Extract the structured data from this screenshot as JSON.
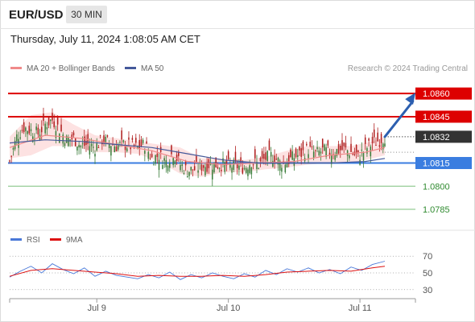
{
  "header": {
    "symbol": "EUR/USD",
    "timeframe": "30 MIN",
    "datetime": "Thursday, July 11, 2024 1:08:05 AM CET"
  },
  "legend": {
    "ma20_bb": "MA 20 + Bollinger Bands",
    "ma50": "MA 50",
    "copyright": "Research © 2024 Trading Central"
  },
  "rsi_legend": {
    "rsi": "RSI",
    "ma9": "9MA"
  },
  "colors": {
    "resistance": "#dd0000",
    "support": "#3a7de0",
    "target": "#2f8a2f",
    "arrow": "#2c5fb0",
    "bullish": "#3a7d3a",
    "bearish": "#b02020",
    "bollinger_fill": "#fde2e2",
    "ma20": "#f08a8a",
    "ma50": "#44599a",
    "rsi": "#4a78d8",
    "rsi_ma": "#dd1111",
    "current_price_tag": "#333333"
  },
  "chart_data": [
    {
      "type": "candlestick",
      "instrument": "EUR/USD",
      "timeframe": "30 MIN",
      "ylim": [
        1.0772,
        1.087
      ],
      "x_tick_labels": [
        "Jul 9",
        "Jul 10",
        "Jul 11"
      ],
      "levels": [
        {
          "value": 1.086,
          "label": "1.0860",
          "kind": "resistance"
        },
        {
          "value": 1.0845,
          "label": "1.0845",
          "kind": "resistance"
        },
        {
          "value": 1.0832,
          "label": "1.0832",
          "kind": "current"
        },
        {
          "value": 1.0815,
          "label": "1.0815",
          "kind": "pivot"
        },
        {
          "value": 1.08,
          "label": "1.0800",
          "kind": "target"
        },
        {
          "value": 1.0785,
          "label": "1.0785",
          "kind": "target"
        }
      ],
      "close_path": [
        [
          0,
          1.0816
        ],
        [
          4,
          1.0832
        ],
        [
          8,
          1.0838
        ],
        [
          12,
          1.0836
        ],
        [
          16,
          1.0834
        ],
        [
          20,
          1.084
        ],
        [
          24,
          1.0843
        ],
        [
          28,
          1.0837
        ],
        [
          32,
          1.083
        ],
        [
          36,
          1.0831
        ],
        [
          40,
          1.0826
        ],
        [
          44,
          1.0827
        ],
        [
          48,
          1.0825
        ],
        [
          52,
          1.083
        ],
        [
          56,
          1.0828
        ],
        [
          60,
          1.0826
        ],
        [
          64,
          1.0827
        ],
        [
          68,
          1.0826
        ],
        [
          72,
          1.0825
        ],
        [
          76,
          1.0827
        ],
        [
          80,
          1.0818
        ],
        [
          84,
          1.082
        ],
        [
          88,
          1.0816
        ],
        [
          92,
          1.0822
        ],
        [
          96,
          1.0814
        ],
        [
          100,
          1.081
        ],
        [
          104,
          1.0811
        ],
        [
          108,
          1.0813
        ],
        [
          112,
          1.0814
        ],
        [
          116,
          1.0814
        ],
        [
          120,
          1.0814
        ],
        [
          124,
          1.0813
        ],
        [
          128,
          1.0813
        ],
        [
          132,
          1.0812
        ],
        [
          136,
          1.0816
        ],
        [
          140,
          1.0814
        ],
        [
          144,
          1.0818
        ],
        [
          148,
          1.082
        ],
        [
          152,
          1.0815
        ],
        [
          156,
          1.0816
        ],
        [
          160,
          1.0819
        ],
        [
          164,
          1.0821
        ],
        [
          168,
          1.0824
        ],
        [
          172,
          1.0821
        ],
        [
          176,
          1.0823
        ],
        [
          180,
          1.0822
        ],
        [
          184,
          1.0823
        ],
        [
          188,
          1.0824
        ],
        [
          192,
          1.0822
        ],
        [
          196,
          1.0819
        ],
        [
          200,
          1.0824
        ],
        [
          204,
          1.0828
        ],
        [
          208,
          1.083
        ],
        [
          211,
          1.0832
        ]
      ],
      "ma20_path": [
        [
          0,
          1.0825
        ],
        [
          20,
          1.0833
        ],
        [
          40,
          1.0831
        ],
        [
          60,
          1.0827
        ],
        [
          80,
          1.0823
        ],
        [
          100,
          1.0816
        ],
        [
          120,
          1.0814
        ],
        [
          140,
          1.0815
        ],
        [
          160,
          1.0816
        ],
        [
          180,
          1.082
        ],
        [
          200,
          1.0822
        ],
        [
          211,
          1.0825
        ]
      ],
      "ma50_path": [
        [
          0,
          1.0828
        ],
        [
          20,
          1.083
        ],
        [
          40,
          1.0829
        ],
        [
          60,
          1.0827
        ],
        [
          80,
          1.0825
        ],
        [
          100,
          1.0821
        ],
        [
          120,
          1.0817
        ],
        [
          140,
          1.0815
        ],
        [
          160,
          1.0815
        ],
        [
          180,
          1.0815
        ],
        [
          200,
          1.0816
        ],
        [
          211,
          1.0818
        ]
      ],
      "bollinger_upper": [
        [
          0,
          1.0832
        ],
        [
          12,
          1.0846
        ],
        [
          24,
          1.0848
        ],
        [
          36,
          1.084
        ],
        [
          48,
          1.0833
        ],
        [
          60,
          1.0831
        ],
        [
          72,
          1.0829
        ],
        [
          84,
          1.0827
        ],
        [
          96,
          1.0825
        ],
        [
          108,
          1.0818
        ],
        [
          120,
          1.0818
        ],
        [
          132,
          1.0817
        ],
        [
          144,
          1.0819
        ],
        [
          156,
          1.0823
        ],
        [
          168,
          1.0826
        ],
        [
          180,
          1.0826
        ],
        [
          192,
          1.0826
        ],
        [
          204,
          1.0829
        ],
        [
          211,
          1.0832
        ]
      ],
      "bollinger_lower": [
        [
          0,
          1.0818
        ],
        [
          12,
          1.082
        ],
        [
          24,
          1.0826
        ],
        [
          36,
          1.0826
        ],
        [
          48,
          1.0822
        ],
        [
          60,
          1.0822
        ],
        [
          72,
          1.0821
        ],
        [
          84,
          1.0816
        ],
        [
          96,
          1.0808
        ],
        [
          108,
          1.0806
        ],
        [
          120,
          1.0809
        ],
        [
          132,
          1.0809
        ],
        [
          144,
          1.0811
        ],
        [
          156,
          1.0812
        ],
        [
          168,
          1.0814
        ],
        [
          180,
          1.0815
        ],
        [
          192,
          1.0815
        ],
        [
          204,
          1.0818
        ],
        [
          211,
          1.082
        ]
      ],
      "projection": {
        "from": [
          211,
          1.0832
        ],
        "to": [
          224,
          1.0858
        ]
      }
    },
    {
      "type": "line",
      "title": "RSI",
      "ylim": [
        24,
        76
      ],
      "y_ticks": [
        70,
        50,
        30
      ],
      "series": [
        {
          "name": "RSI",
          "values": [
            [
              0,
              45
            ],
            [
              6,
              52
            ],
            [
              12,
              58
            ],
            [
              18,
              50
            ],
            [
              24,
              61
            ],
            [
              30,
              54
            ],
            [
              36,
              49
            ],
            [
              42,
              56
            ],
            [
              48,
              46
            ],
            [
              54,
              52
            ],
            [
              60,
              47
            ],
            [
              66,
              45
            ],
            [
              72,
              43
            ],
            [
              78,
              48
            ],
            [
              84,
              44
            ],
            [
              90,
              51
            ],
            [
              96,
              42
            ],
            [
              102,
              48
            ],
            [
              108,
              44
            ],
            [
              114,
              50
            ],
            [
              120,
              46
            ],
            [
              126,
              43
            ],
            [
              132,
              49
            ],
            [
              138,
              45
            ],
            [
              144,
              53
            ],
            [
              150,
              48
            ],
            [
              156,
              55
            ],
            [
              162,
              51
            ],
            [
              168,
              56
            ],
            [
              174,
              50
            ],
            [
              180,
              54
            ],
            [
              186,
              49
            ],
            [
              192,
              57
            ],
            [
              198,
              53
            ],
            [
              204,
              60
            ],
            [
              211,
              64
            ]
          ]
        },
        {
          "name": "9MA",
          "values": [
            [
              0,
              46
            ],
            [
              12,
              53
            ],
            [
              24,
              55
            ],
            [
              36,
              53
            ],
            [
              48,
              51
            ],
            [
              60,
              49
            ],
            [
              72,
              46
            ],
            [
              84,
              47
            ],
            [
              96,
              46
            ],
            [
              108,
              46
            ],
            [
              120,
              47
            ],
            [
              132,
              46
            ],
            [
              144,
              48
            ],
            [
              156,
              51
            ],
            [
              168,
              52
            ],
            [
              180,
              53
            ],
            [
              192,
              52
            ],
            [
              204,
              56
            ],
            [
              211,
              58
            ]
          ]
        }
      ]
    }
  ]
}
